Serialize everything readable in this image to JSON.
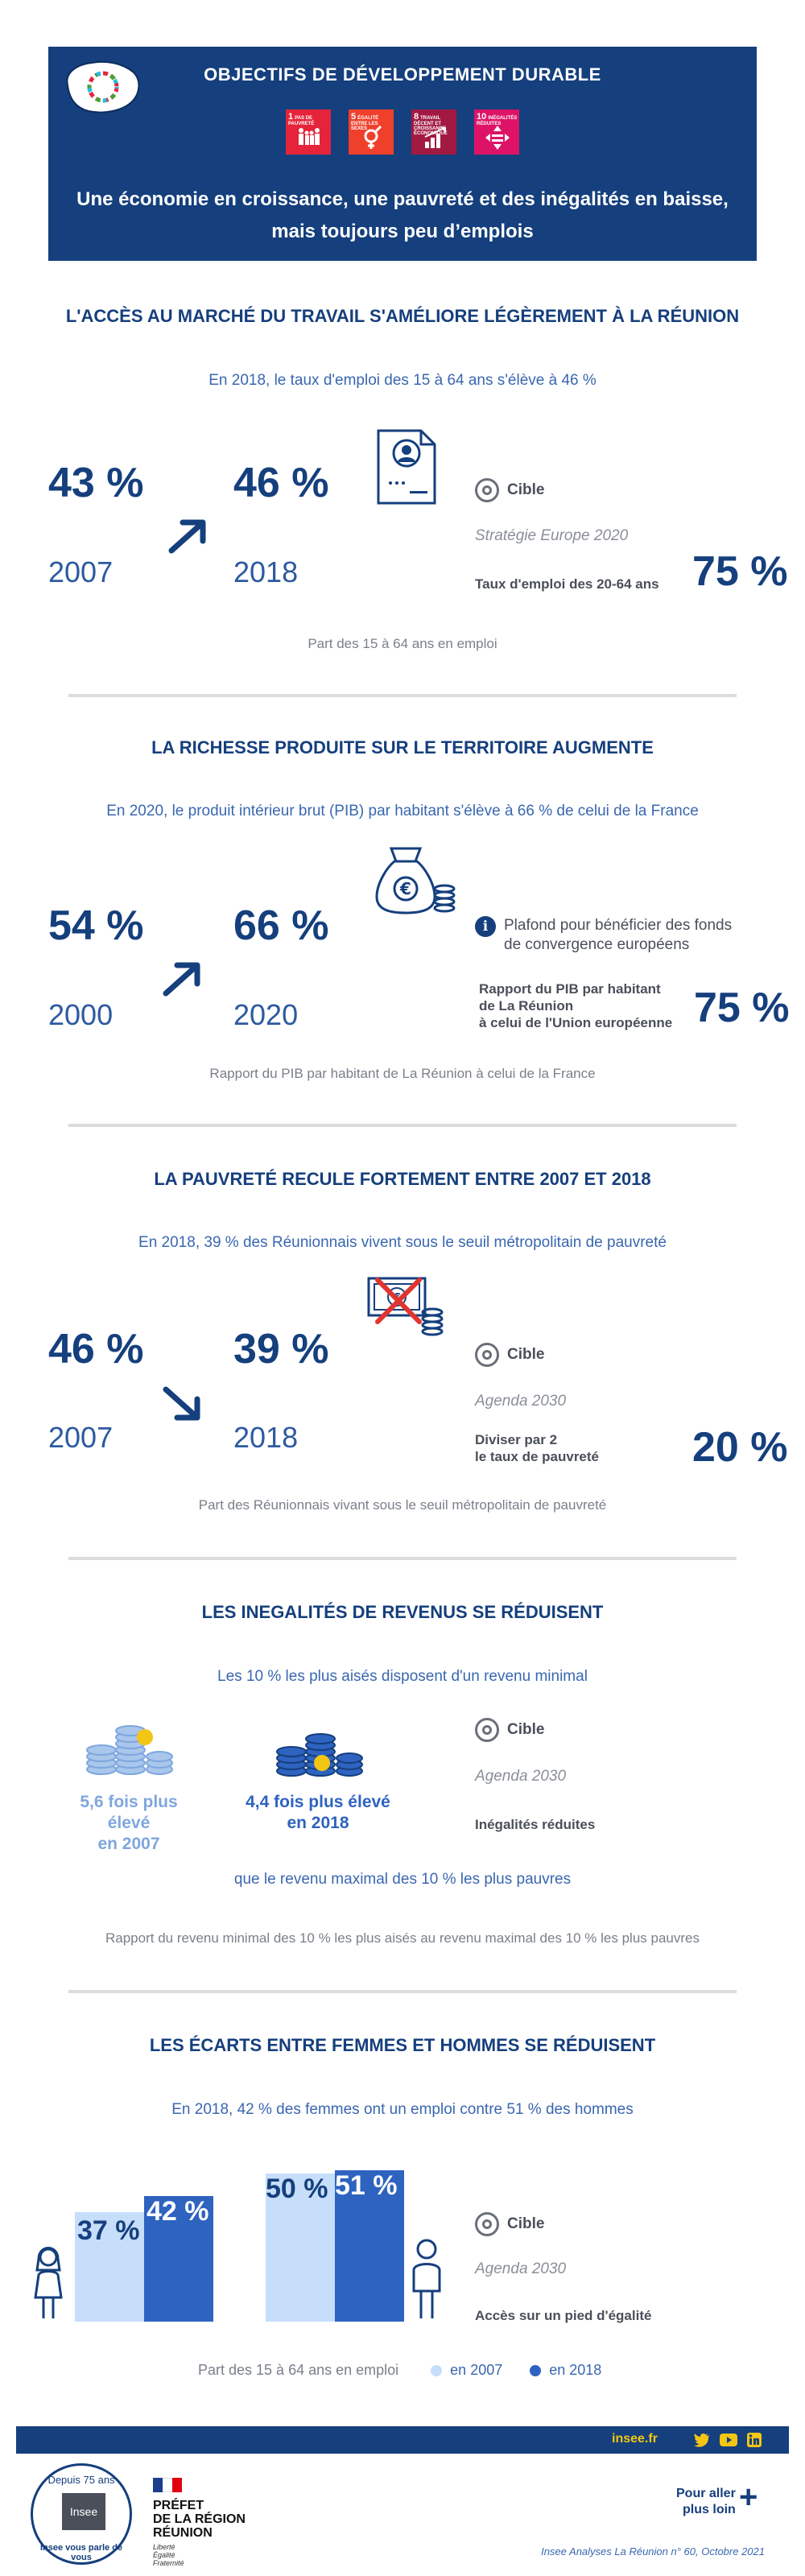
{
  "header": {
    "title": "OBJECTIFS DE DÉVELOPPEMENT DURABLE",
    "subtitle_line1": "Une économie en croissance, une pauvreté et des inégalités en baisse,",
    "subtitle_line2": "mais toujours peu d’emplois",
    "sdg_icons": [
      {
        "num": "1",
        "label": "PAS DE PAUVRETÉ",
        "color": "#e5243b"
      },
      {
        "num": "5",
        "label": "ÉGALITÉ ENTRE LES SEXES",
        "color": "#ef402b"
      },
      {
        "num": "8",
        "label": "TRAVAIL DÉCENT ET CROISSANCE ÉCONOMIQUE",
        "color": "#a21942"
      },
      {
        "num": "10",
        "label": "INÉGALITÉS RÉDUITES",
        "color": "#dd1367"
      }
    ]
  },
  "s1": {
    "title": "L'ACCÈS AU MARCHÉ DU TRAVAIL S'AMÉLIORE LÉGÈREMENT À LA RÉUNION",
    "subtitle": "En 2018, le taux d'emploi des 15 à 64 ans s'élève à 46 %",
    "val1": "43 %",
    "year1": "2007",
    "val2": "46 %",
    "year2": "2018",
    "cible": "Cible",
    "ref": "Stratégie Europe 2020",
    "target_label": "Taux d'emploi des 20-64 ans",
    "target_value": "75 %",
    "caption": "Part des 15 à 64 ans en emploi"
  },
  "s2": {
    "title": "LA RICHESSE PRODUITE SUR LE TERRITOIRE AUGMENTE",
    "subtitle": "En 2020, le produit intérieur brut (PIB) par habitant s'élève à 66 % de celui de la France",
    "val1": "54 %",
    "year1": "2000",
    "val2": "66 %",
    "year2": "2020",
    "note_line1": "Plafond pour bénéficier des fonds",
    "note_line2": "de convergence européens",
    "target_line1": "Rapport du PIB par habitant",
    "target_line2": "de La Réunion",
    "target_line3": "à celui de l'Union européenne",
    "target_value": "75 %",
    "caption": "Rapport du PIB par habitant de La Réunion à celui de la France"
  },
  "s3": {
    "title": "LA PAUVRETÉ RECULE FORTEMENT ENTRE 2007 ET 2018",
    "subtitle": "En 2018, 39 % des Réunionnais vivent sous le seuil métropolitain de pauvreté",
    "val1": "46 %",
    "year1": "2007",
    "val2": "39 %",
    "year2": "2018",
    "cible": "Cible",
    "ref": "Agenda 2030",
    "target_line1": "Diviser par 2",
    "target_line2": "le taux de pauvreté",
    "target_value": "20 %",
    "caption": "Part des Réunionnais vivant sous le seuil métropolitain de pauvreté"
  },
  "s4": {
    "title": "LES INEGALITÉS DE REVENUS SE RÉDUISENT",
    "subtitle": "Les 10 % les plus aisés disposent d'un revenu minimal",
    "r1_line1": "5,6 fois plus élevé",
    "r1_line2": "en 2007",
    "r2_line1": "4,4 fois plus élevé",
    "r2_line2": "en 2018",
    "cible": "Cible",
    "ref": "Agenda 2030",
    "target_label": "Inégalités réduites",
    "middle": "que le revenu maximal des 10 % les plus pauvres",
    "caption": "Rapport du revenu minimal des 10 % les plus aisés au revenu maximal des 10 % les plus pauvres",
    "color_2007": "#7fa7dd",
    "color_2018": "#2e63c0"
  },
  "s5": {
    "title": "LES ÉCARTS ENTRE FEMMES ET HOMMES SE RÉDUISENT",
    "subtitle": "En 2018, 42 % des femmes ont un emploi contre 51 % des hommes",
    "women_2007": "37 %",
    "women_2018": "42 %",
    "men_2007": "50 %",
    "men_2018": "51 %",
    "cible": "Cible",
    "ref": "Agenda 2030",
    "target_label": "Accès sur un pied d'égalité",
    "caption": "Part des 15 à 64 ans en emploi",
    "legend_2007": "en 2007",
    "legend_2018": "en 2018",
    "color_2007": "#c6defa",
    "color_2018": "#2e63c0"
  },
  "footer": {
    "site": "insee.fr",
    "seal_top": "Depuis 75 ans",
    "seal_logo": "Insee",
    "seal_bottom": "Insee vous parle de vous",
    "prefet_line1": "PRÉFET",
    "prefet_line2": "DE LA RÉGION",
    "prefet_line3": "RÉUNION",
    "motto1": "Liberté",
    "motto2": "Égalité",
    "motto3": "Fraternité",
    "more_line1": "Pour aller",
    "more_line2": "plus loin",
    "publication": "Insee Analyses La Réunion n° 60, Octobre 2021"
  }
}
